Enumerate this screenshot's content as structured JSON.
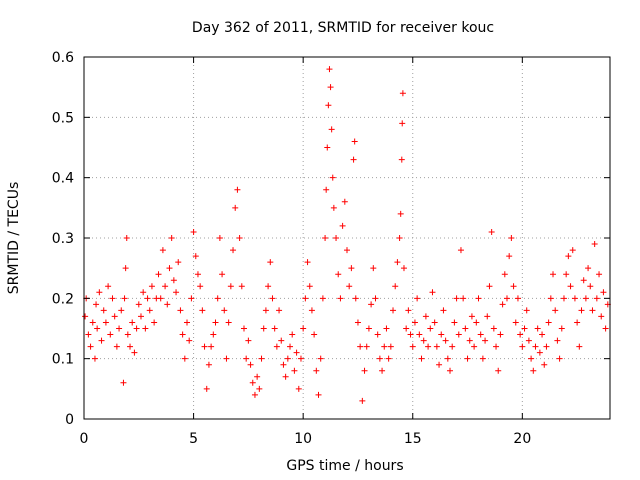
{
  "chart_data": {
    "type": "scatter",
    "title": "Day 362 of 2011, SRMTID for receiver kouc",
    "xlabel": "GPS time / hours",
    "ylabel": "SRMTID / TECUs",
    "xlim": [
      0,
      24
    ],
    "ylim": [
      0,
      0.6
    ],
    "x_ticks": [
      0,
      5,
      10,
      15,
      20
    ],
    "x_tick_labels": [
      "0",
      "5",
      "10",
      "15",
      "20"
    ],
    "y_ticks": [
      0,
      0.1,
      0.2,
      0.3,
      0.4,
      0.5,
      0.6
    ],
    "y_tick_labels": [
      "0",
      "0.1",
      "0.2",
      "0.3",
      "0.4",
      "0.5",
      "0.6"
    ],
    "grid": true,
    "marker": "plus",
    "color": "#ff0000",
    "series": [
      {
        "name": "SRMTID",
        "points": [
          [
            0.05,
            0.17
          ],
          [
            0.1,
            0.2
          ],
          [
            0.2,
            0.14
          ],
          [
            0.3,
            0.12
          ],
          [
            0.4,
            0.16
          ],
          [
            0.5,
            0.1
          ],
          [
            0.55,
            0.19
          ],
          [
            0.6,
            0.15
          ],
          [
            0.7,
            0.21
          ],
          [
            0.8,
            0.13
          ],
          [
            0.9,
            0.18
          ],
          [
            1.0,
            0.16
          ],
          [
            1.1,
            0.22
          ],
          [
            1.2,
            0.14
          ],
          [
            1.3,
            0.2
          ],
          [
            1.4,
            0.17
          ],
          [
            1.5,
            0.12
          ],
          [
            1.6,
            0.15
          ],
          [
            1.7,
            0.18
          ],
          [
            1.8,
            0.06
          ],
          [
            1.85,
            0.2
          ],
          [
            1.9,
            0.25
          ],
          [
            1.95,
            0.3
          ],
          [
            2.0,
            0.14
          ],
          [
            2.1,
            0.12
          ],
          [
            2.2,
            0.16
          ],
          [
            2.3,
            0.11
          ],
          [
            2.4,
            0.15
          ],
          [
            2.5,
            0.19
          ],
          [
            2.6,
            0.17
          ],
          [
            2.7,
            0.21
          ],
          [
            2.8,
            0.15
          ],
          [
            2.9,
            0.2
          ],
          [
            3.0,
            0.18
          ],
          [
            3.1,
            0.22
          ],
          [
            3.2,
            0.16
          ],
          [
            3.3,
            0.2
          ],
          [
            3.4,
            0.24
          ],
          [
            3.5,
            0.2
          ],
          [
            3.6,
            0.28
          ],
          [
            3.7,
            0.22
          ],
          [
            3.8,
            0.19
          ],
          [
            3.9,
            0.25
          ],
          [
            4.0,
            0.3
          ],
          [
            4.1,
            0.23
          ],
          [
            4.2,
            0.21
          ],
          [
            4.3,
            0.26
          ],
          [
            4.4,
            0.18
          ],
          [
            4.5,
            0.14
          ],
          [
            4.6,
            0.1
          ],
          [
            4.7,
            0.16
          ],
          [
            4.8,
            0.13
          ],
          [
            4.9,
            0.2
          ],
          [
            5.0,
            0.31
          ],
          [
            5.1,
            0.27
          ],
          [
            5.2,
            0.24
          ],
          [
            5.3,
            0.22
          ],
          [
            5.4,
            0.18
          ],
          [
            5.5,
            0.12
          ],
          [
            5.6,
            0.05
          ],
          [
            5.7,
            0.09
          ],
          [
            5.8,
            0.12
          ],
          [
            5.9,
            0.14
          ],
          [
            6.0,
            0.16
          ],
          [
            6.1,
            0.2
          ],
          [
            6.2,
            0.3
          ],
          [
            6.3,
            0.24
          ],
          [
            6.4,
            0.18
          ],
          [
            6.5,
            0.1
          ],
          [
            6.6,
            0.16
          ],
          [
            6.7,
            0.22
          ],
          [
            6.8,
            0.28
          ],
          [
            6.9,
            0.35
          ],
          [
            7.0,
            0.38
          ],
          [
            7.1,
            0.3
          ],
          [
            7.2,
            0.22
          ],
          [
            7.3,
            0.15
          ],
          [
            7.4,
            0.1
          ],
          [
            7.5,
            0.13
          ],
          [
            7.6,
            0.09
          ],
          [
            7.7,
            0.06
          ],
          [
            7.8,
            0.04
          ],
          [
            7.9,
            0.07
          ],
          [
            8.0,
            0.05
          ],
          [
            8.1,
            0.1
          ],
          [
            8.2,
            0.15
          ],
          [
            8.3,
            0.18
          ],
          [
            8.4,
            0.22
          ],
          [
            8.5,
            0.26
          ],
          [
            8.6,
            0.2
          ],
          [
            8.7,
            0.15
          ],
          [
            8.8,
            0.12
          ],
          [
            8.9,
            0.18
          ],
          [
            9.0,
            0.13
          ],
          [
            9.1,
            0.09
          ],
          [
            9.2,
            0.07
          ],
          [
            9.3,
            0.1
          ],
          [
            9.4,
            0.12
          ],
          [
            9.5,
            0.14
          ],
          [
            9.6,
            0.08
          ],
          [
            9.7,
            0.11
          ],
          [
            9.8,
            0.05
          ],
          [
            9.9,
            0.1
          ],
          [
            10.0,
            0.15
          ],
          [
            10.1,
            0.2
          ],
          [
            10.2,
            0.26
          ],
          [
            10.3,
            0.22
          ],
          [
            10.4,
            0.18
          ],
          [
            10.5,
            0.14
          ],
          [
            10.6,
            0.08
          ],
          [
            10.7,
            0.04
          ],
          [
            10.8,
            0.1
          ],
          [
            10.9,
            0.2
          ],
          [
            11.0,
            0.3
          ],
          [
            11.05,
            0.38
          ],
          [
            11.1,
            0.45
          ],
          [
            11.15,
            0.52
          ],
          [
            11.2,
            0.58
          ],
          [
            11.25,
            0.55
          ],
          [
            11.3,
            0.48
          ],
          [
            11.35,
            0.4
          ],
          [
            11.4,
            0.35
          ],
          [
            11.5,
            0.3
          ],
          [
            11.6,
            0.24
          ],
          [
            11.7,
            0.2
          ],
          [
            11.8,
            0.32
          ],
          [
            11.9,
            0.36
          ],
          [
            12.0,
            0.28
          ],
          [
            12.1,
            0.22
          ],
          [
            12.2,
            0.25
          ],
          [
            12.3,
            0.43
          ],
          [
            12.35,
            0.46
          ],
          [
            12.4,
            0.2
          ],
          [
            12.5,
            0.16
          ],
          [
            12.6,
            0.12
          ],
          [
            12.7,
            0.03
          ],
          [
            12.8,
            0.08
          ],
          [
            12.9,
            0.12
          ],
          [
            13.0,
            0.15
          ],
          [
            13.1,
            0.19
          ],
          [
            13.2,
            0.25
          ],
          [
            13.3,
            0.2
          ],
          [
            13.4,
            0.14
          ],
          [
            13.5,
            0.1
          ],
          [
            13.6,
            0.08
          ],
          [
            13.7,
            0.12
          ],
          [
            13.8,
            0.15
          ],
          [
            13.9,
            0.1
          ],
          [
            14.0,
            0.12
          ],
          [
            14.1,
            0.18
          ],
          [
            14.2,
            0.22
          ],
          [
            14.3,
            0.26
          ],
          [
            14.4,
            0.3
          ],
          [
            14.45,
            0.34
          ],
          [
            14.5,
            0.43
          ],
          [
            14.52,
            0.49
          ],
          [
            14.55,
            0.54
          ],
          [
            14.6,
            0.25
          ],
          [
            14.7,
            0.15
          ],
          [
            14.8,
            0.18
          ],
          [
            14.9,
            0.14
          ],
          [
            15.0,
            0.12
          ],
          [
            15.1,
            0.16
          ],
          [
            15.2,
            0.2
          ],
          [
            15.3,
            0.14
          ],
          [
            15.4,
            0.1
          ],
          [
            15.5,
            0.13
          ],
          [
            15.6,
            0.17
          ],
          [
            15.7,
            0.12
          ],
          [
            15.8,
            0.15
          ],
          [
            15.9,
            0.21
          ],
          [
            16.0,
            0.16
          ],
          [
            16.1,
            0.12
          ],
          [
            16.2,
            0.09
          ],
          [
            16.3,
            0.14
          ],
          [
            16.4,
            0.18
          ],
          [
            16.5,
            0.13
          ],
          [
            16.6,
            0.1
          ],
          [
            16.7,
            0.08
          ],
          [
            16.8,
            0.12
          ],
          [
            16.9,
            0.16
          ],
          [
            17.0,
            0.2
          ],
          [
            17.1,
            0.14
          ],
          [
            17.2,
            0.28
          ],
          [
            17.3,
            0.2
          ],
          [
            17.4,
            0.15
          ],
          [
            17.5,
            0.1
          ],
          [
            17.6,
            0.13
          ],
          [
            17.7,
            0.17
          ],
          [
            17.8,
            0.12
          ],
          [
            17.9,
            0.16
          ],
          [
            18.0,
            0.2
          ],
          [
            18.1,
            0.14
          ],
          [
            18.2,
            0.1
          ],
          [
            18.3,
            0.13
          ],
          [
            18.4,
            0.17
          ],
          [
            18.5,
            0.22
          ],
          [
            18.6,
            0.31
          ],
          [
            18.7,
            0.15
          ],
          [
            18.8,
            0.12
          ],
          [
            18.9,
            0.08
          ],
          [
            19.0,
            0.14
          ],
          [
            19.1,
            0.19
          ],
          [
            19.2,
            0.24
          ],
          [
            19.3,
            0.2
          ],
          [
            19.4,
            0.27
          ],
          [
            19.5,
            0.3
          ],
          [
            19.6,
            0.22
          ],
          [
            19.7,
            0.16
          ],
          [
            19.8,
            0.2
          ],
          [
            19.9,
            0.14
          ],
          [
            20.0,
            0.12
          ],
          [
            20.1,
            0.15
          ],
          [
            20.2,
            0.18
          ],
          [
            20.3,
            0.13
          ],
          [
            20.4,
            0.1
          ],
          [
            20.5,
            0.08
          ],
          [
            20.6,
            0.12
          ],
          [
            20.7,
            0.15
          ],
          [
            20.8,
            0.11
          ],
          [
            20.9,
            0.14
          ],
          [
            21.0,
            0.09
          ],
          [
            21.1,
            0.12
          ],
          [
            21.2,
            0.16
          ],
          [
            21.3,
            0.2
          ],
          [
            21.4,
            0.24
          ],
          [
            21.5,
            0.18
          ],
          [
            21.6,
            0.13
          ],
          [
            21.7,
            0.1
          ],
          [
            21.8,
            0.15
          ],
          [
            21.9,
            0.2
          ],
          [
            22.0,
            0.24
          ],
          [
            22.1,
            0.27
          ],
          [
            22.2,
            0.22
          ],
          [
            22.3,
            0.28
          ],
          [
            22.4,
            0.2
          ],
          [
            22.5,
            0.16
          ],
          [
            22.6,
            0.12
          ],
          [
            22.7,
            0.18
          ],
          [
            22.8,
            0.23
          ],
          [
            22.9,
            0.2
          ],
          [
            23.0,
            0.25
          ],
          [
            23.1,
            0.22
          ],
          [
            23.2,
            0.18
          ],
          [
            23.3,
            0.29
          ],
          [
            23.4,
            0.2
          ],
          [
            23.5,
            0.24
          ],
          [
            23.6,
            0.17
          ],
          [
            23.7,
            0.21
          ],
          [
            23.8,
            0.15
          ],
          [
            23.9,
            0.19
          ]
        ]
      }
    ]
  }
}
